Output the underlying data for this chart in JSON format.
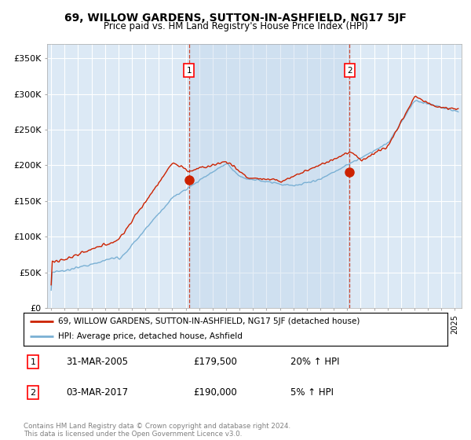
{
  "title": "69, WILLOW GARDENS, SUTTON-IN-ASHFIELD, NG17 5JF",
  "subtitle": "Price paid vs. HM Land Registry's House Price Index (HPI)",
  "ylabel_ticks": [
    "£0",
    "£50K",
    "£100K",
    "£150K",
    "£200K",
    "£250K",
    "£300K",
    "£350K"
  ],
  "ytick_values": [
    0,
    50000,
    100000,
    150000,
    200000,
    250000,
    300000,
    350000
  ],
  "ylim": [
    0,
    370000
  ],
  "xlim_start": 1994.7,
  "xlim_end": 2025.5,
  "background_color": "#dce9f5",
  "plot_bg": "#dce9f5",
  "shade_color": "#c8dcf0",
  "hpi_color": "#7ab0d4",
  "price_color": "#cc2200",
  "sale1_date": "31-MAR-2005",
  "sale1_price": 179500,
  "sale1_hpi_pct": "20% ↑ HPI",
  "sale1_x": 2005.25,
  "sale2_date": "03-MAR-2017",
  "sale2_price": 190000,
  "sale2_hpi_pct": "5% ↑ HPI",
  "sale2_x": 2017.17,
  "legend_line1": "69, WILLOW GARDENS, SUTTON-IN-ASHFIELD, NG17 5JF (detached house)",
  "legend_line2": "HPI: Average price, detached house, Ashfield",
  "footer": "Contains HM Land Registry data © Crown copyright and database right 2024.\nThis data is licensed under the Open Government Licence v3.0."
}
